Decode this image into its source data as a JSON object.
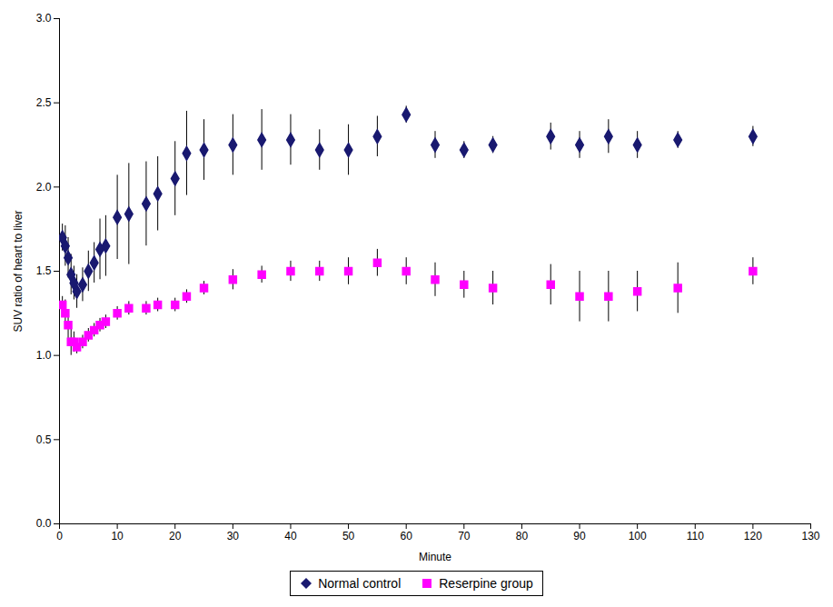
{
  "chart_data": {
    "type": "scatter",
    "xlabel": "Minute",
    "ylabel": "SUV ratio of heart to liver",
    "xlim": [
      0,
      130
    ],
    "ylim": [
      0,
      3
    ],
    "xticks": [
      0,
      10,
      20,
      30,
      40,
      50,
      60,
      70,
      80,
      90,
      100,
      110,
      120,
      130
    ],
    "yticks": [
      {
        "value": 0,
        "label": "0.0"
      },
      0.5,
      {
        "value": 1,
        "label": "1.0"
      },
      1.5,
      {
        "value": 2,
        "label": "2.0"
      },
      2.5,
      {
        "value": 3,
        "label": "3.0"
      }
    ],
    "legend": "bottom",
    "grid": false,
    "x": [
      0.5,
      1.0,
      1.5,
      2.0,
      2.5,
      3.0,
      4.0,
      5.0,
      6.0,
      7.0,
      8.0,
      10.0,
      12.0,
      15.0,
      17.0,
      20.0,
      22.0,
      25.0,
      30.0,
      35.0,
      40.0,
      45.0,
      50.0,
      55.0,
      60.0,
      65.0,
      70.0,
      75.0,
      85.0,
      90.0,
      95.0,
      100.0,
      107.0,
      120.0
    ],
    "series": [
      {
        "name": "Normal control",
        "color": "#191970",
        "marker": "diamond",
        "values": [
          1.7,
          1.65,
          1.58,
          1.48,
          1.43,
          1.38,
          1.42,
          1.5,
          1.55,
          1.63,
          1.65,
          1.82,
          1.84,
          1.9,
          1.96,
          2.05,
          2.2,
          2.22,
          2.25,
          2.28,
          2.28,
          2.22,
          2.22,
          2.3,
          2.43,
          2.25,
          2.22,
          2.25,
          2.3,
          2.25,
          2.3,
          2.25,
          2.28,
          2.3
        ],
        "yerr": [
          0.08,
          0.12,
          0.12,
          0.12,
          0.1,
          0.1,
          0.1,
          0.12,
          0.12,
          0.18,
          0.18,
          0.25,
          0.3,
          0.25,
          0.22,
          0.22,
          0.25,
          0.18,
          0.18,
          0.18,
          0.15,
          0.12,
          0.15,
          0.12,
          0.05,
          0.08,
          0.05,
          0.05,
          0.08,
          0.08,
          0.1,
          0.08,
          0.05,
          0.06
        ]
      },
      {
        "name": "Reserpine group",
        "color": "#FF00FF",
        "marker": "square",
        "values": [
          1.3,
          1.25,
          1.18,
          1.08,
          1.08,
          1.05,
          1.08,
          1.12,
          1.15,
          1.18,
          1.2,
          1.25,
          1.28,
          1.28,
          1.3,
          1.3,
          1.35,
          1.4,
          1.45,
          1.48,
          1.5,
          1.5,
          1.5,
          1.55,
          1.5,
          1.45,
          1.42,
          1.4,
          1.42,
          1.35,
          1.35,
          1.38,
          1.4,
          1.5
        ],
        "yerr": [
          0.05,
          0.08,
          0.08,
          0.08,
          0.06,
          0.04,
          0.04,
          0.04,
          0.04,
          0.04,
          0.04,
          0.04,
          0.04,
          0.04,
          0.04,
          0.04,
          0.04,
          0.04,
          0.06,
          0.05,
          0.06,
          0.06,
          0.08,
          0.08,
          0.08,
          0.1,
          0.08,
          0.1,
          0.12,
          0.15,
          0.15,
          0.12,
          0.15,
          0.08
        ]
      }
    ]
  }
}
